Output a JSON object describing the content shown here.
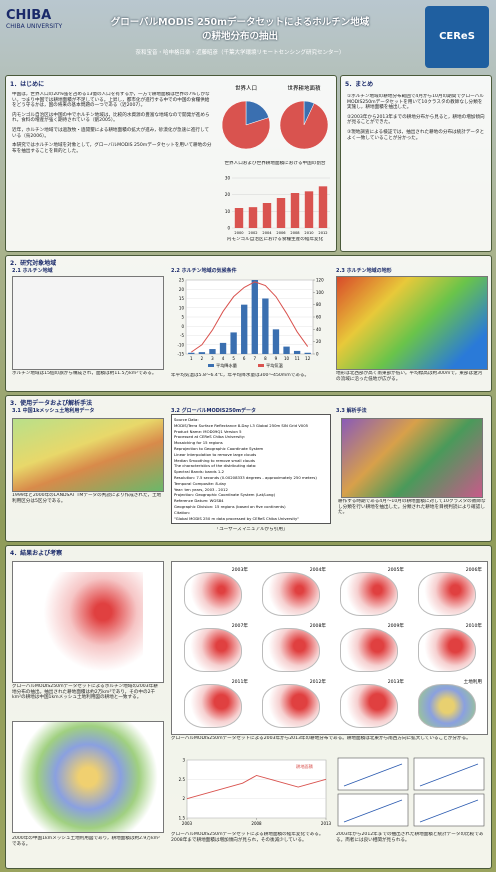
{
  "header": {
    "university": "CHIBA UNIVERSITY",
    "title_line1": "グローバルMODIS 250mデータセットによるホルチン地域",
    "title_line2": "の耕地分布の抽出",
    "authors": "奈和宝音・哈申格日楽・近藤昭彦（千葉大学環境リモートセンシング研究センター）",
    "ceres": "CEReS"
  },
  "intro": {
    "heading": "1．はじめに",
    "paragraphs": [
      "中国は，世界人口の20%強を占める13億の人口を有するが，一方で耕地面積は世界の7%しかない。つまり中国では耕地面積が不足している。上昇し，都市化が進行する中での中国の食糧供給をどう守るかは，国の将来の基本問題の一つである（近2007）。",
      "内モンゴル自治区は中国の中でホルチン地域は，比較的水資源の豊富な地域なので開発が進められ，食料の増産が強く期待されている（劉2005）。",
      "近年，ホルチン地域では過放牧・過開墾による耕地面積の拡大が進み，砂漠化が急速に進行している（烏2006）。",
      "本研究ではホルチン地域を対象として，グローバルMODIS 250mデータセットを用いて耕地の分布を抽出することを目的とした。"
    ],
    "pie_caption": "世界人口および世界耕地面積における中国の割合",
    "bar_caption": "内モンゴル自治区における食糧生産の経年変化"
  },
  "pies": [
    {
      "type": "pie",
      "title": "世界人口",
      "values": [
        20,
        80
      ],
      "colors": [
        "#3a6fb0",
        "#d9534f"
      ]
    },
    {
      "type": "pie",
      "title": "世界耕地面積",
      "values": [
        7,
        93
      ],
      "colors": [
        "#3a6fb0",
        "#d9534f"
      ]
    }
  ],
  "food_chart": {
    "type": "bar",
    "categories": [
      "2000",
      "2002",
      "2004",
      "2006",
      "2008",
      "2010",
      "2012"
    ],
    "values": [
      12,
      12.5,
      15,
      18,
      21,
      22,
      25
    ],
    "color": "#d9534f",
    "ylim": [
      0,
      30
    ],
    "yticks": [
      0,
      10,
      20,
      30
    ]
  },
  "summary": {
    "heading": "5．まとめ",
    "paragraphs": [
      "①ホルチン地域の耕地分布範囲で4月から10月の期間でグローバルMODIS250mデータセットを用いて10クラスタの教師なし分類を実施し，耕地面積を抽出した。",
      "②2003年から2013年までの耕地分布から見ると，耕地の増加傾向が見ることができた。",
      "③現地調査による検証では，抽出された耕地の分布は統計データとよく一致していることが分かった。"
    ]
  },
  "study_area": {
    "heading": "2．研究対象地域",
    "sub1": "2.1 ホルチン地域",
    "sub2": "2.2 ホルチン地域の気候条件",
    "sub3": "2.3 ホルチン地域の地形",
    "text1": "ホルチン地域は15個の旗から構成され，面積は約11.5万km²である。",
    "text2": "年平均気温は5.8〜6.4℃，年平均降水量は300〜450mmである。",
    "text3": "地形は北西部が高く南東部が低い。平均標高は約300mで，東部は遼河の流域に沿った低地が広がる。"
  },
  "chart_data": {
    "type": "bar",
    "categories": [
      "1",
      "2",
      "3",
      "4",
      "5",
      "6",
      "7",
      "8",
      "9",
      "10",
      "11",
      "12"
    ],
    "series": [
      {
        "name": "平均降水量",
        "color": "#3a6fb0",
        "values": [
          2,
          3,
          8,
          18,
          35,
          80,
          120,
          90,
          40,
          12,
          5,
          2
        ]
      },
      {
        "name": "平均気温",
        "color": "#d9534f",
        "values": [
          -14,
          -10,
          -2,
          8,
          16,
          21,
          24,
          22,
          16,
          7,
          -3,
          -11
        ],
        "axis": "y2"
      }
    ],
    "ylim": [
      0,
      120
    ],
    "yticks": [
      0,
      20,
      40,
      60,
      80,
      100,
      120
    ],
    "y2lim": [
      -15,
      25
    ],
    "y2ticks": [
      -15,
      -10,
      -5,
      0,
      5,
      10,
      15,
      20,
      25
    ]
  },
  "data_methods": {
    "heading": "3．使用データおよび解析手法",
    "sub1": "3.1 中国1kメッシュ土地利用データ",
    "sub2": "3.2 グローバルMODIS250mデータ",
    "sub3": "3.3 解析手法",
    "text1": "1999年と2000年のLANDSAT TMデータの判読により作成された，土地利用区分は5区分である。",
    "text2": "「ユーザーズマニュアルから引用」",
    "text3": "耕作する時期である4月〜10月の耕地面積に対して10クラスタの教師なし分類を行い耕地を抽出した。分類された耕地を目視判読により確認した。",
    "metadata": [
      "Source Data:",
      "MODIS/Terra Surface Reflectance 8-Day L3 Global 250m SIN Grid V005",
      "Product Name: MOD09Q1 Version 5",
      "Processed at CEReS Chiba University:",
      "Mosaicking for 15 regions",
      "Reprojection to Geographic Coordinate System",
      "Linear Interpolation to remove large clouds",
      "Median Smoothing to remove small clouds",
      "The characteristics of the distributing data:",
      "Spectral Bands: bands 1-2",
      "Resolution: 7.5 seconds (0.00208333 degrees - approximately 250 meters)",
      "Temporal Composite: 8-day",
      "Year: ten years, 2003 - 2012",
      "Projection: Geographic Coordinate System (Lat/Long)",
      "Reference Datum: WGS84",
      "Geographic Division: 15 regions (based on five continents)",
      "Citation:",
      "\"Global MODIS 250 m data processed by CEReS Chiba University\""
    ]
  },
  "results": {
    "heading": "4．結果および考察",
    "text_a": "グローバルMODIS250mデータセットによるホルチン地域の2003年耕地分布の抽出。抽出された耕地面積は約2万km²であり，その中の2千km²の耕地は中国1kmメッシュ土地利用図の耕地と一致する。",
    "text_b": "2000年の中国1kmメッシュ土地利用図であり，耕地面積は約2.9万km²である。",
    "text_c": "グローバルMODIS250mデータセットによる2003年から2013年の耕地分布である。耕地面積は北東から南西方向に拡大していることが分かる。",
    "text_d": "グローバルMODIS250mデータセットによる耕地面積の経年変化である。2008年まで耕地面積は増加傾向が見られ，その後減少している。",
    "text_e": "2003年から2012年までの抽出された耕地面積と統計データの比較である。両者には良い相関が見られる。",
    "years": [
      "2003年",
      "2004年",
      "2005年",
      "2006年",
      "2007年",
      "2008年",
      "2009年",
      "2010年",
      "2011年",
      "2012年",
      "2013年",
      "土地利用"
    ]
  },
  "area_chart": {
    "type": "line",
    "x": [
      2003,
      2004,
      2005,
      2006,
      2007,
      2008,
      2009,
      2010,
      2011,
      2012,
      2013
    ],
    "series": [
      {
        "name": "耕地面積",
        "color": "#d9534f",
        "values": [
          2.0,
          2.1,
          2.2,
          2.3,
          2.4,
          2.6,
          2.5,
          2.4,
          2.3,
          2.4,
          2.5
        ]
      }
    ],
    "xlim": [
      2003,
      2013
    ],
    "xticks": [
      2003,
      2008,
      2013
    ],
    "ylim": [
      1.5,
      3
    ],
    "yticks": [
      1.5,
      2,
      2.5,
      3
    ]
  }
}
